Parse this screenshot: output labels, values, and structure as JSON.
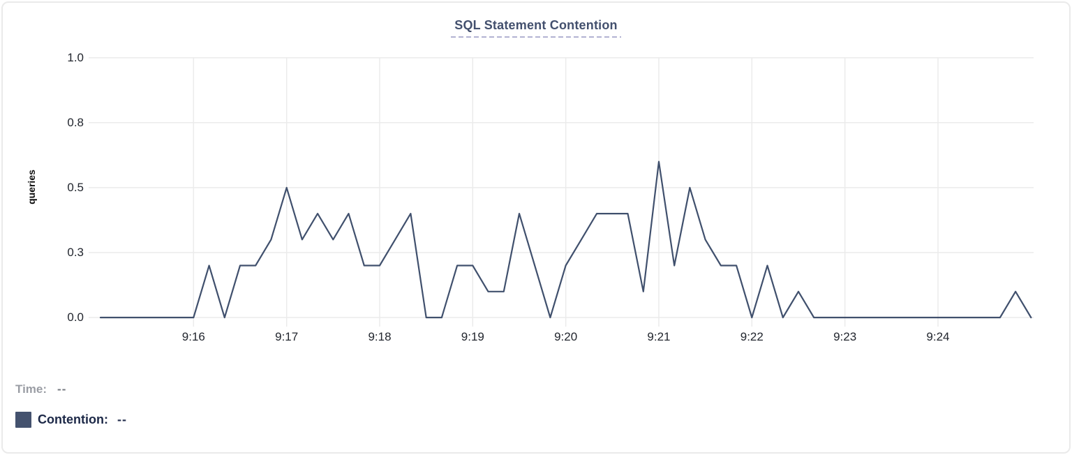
{
  "title": "SQL Statement Contention",
  "y_axis_label": "queries",
  "legend": {
    "time_label": "Time:",
    "time_value": "--",
    "contention_label": "Contention:",
    "contention_value": "--"
  },
  "colors": {
    "series_line": "#40506d",
    "legend_swatch": "#44526e",
    "title_text": "#43506e",
    "title_underline": "#b2b2d2",
    "gridline": "#ebebeb",
    "tick_text": "#22262e",
    "time_label_text": "#9a9da4",
    "legend_text": "#1c2847"
  },
  "chart_data": {
    "type": "line",
    "title": "SQL Statement Contention",
    "xlabel": "",
    "ylabel": "queries",
    "ylim": [
      0,
      1.0
    ],
    "x_range": [
      "9:15:00",
      "9:25:00"
    ],
    "sample_interval_seconds": 10,
    "grid": true,
    "legend_position": "bottom-left",
    "x_ticks": [
      "9:16",
      "9:17",
      "9:18",
      "9:19",
      "9:20",
      "9:21",
      "9:22",
      "9:23",
      "9:24"
    ],
    "y_ticks": [
      {
        "label": "0.0",
        "value": 0
      },
      {
        "label": "0.3",
        "value": 0.25
      },
      {
        "label": "0.5",
        "value": 0.5
      },
      {
        "label": "0.8",
        "value": 0.75
      },
      {
        "label": "1.0",
        "value": 1.0
      }
    ],
    "series": [
      {
        "name": "Contention",
        "unit": "queries",
        "x": [
          "9:15:00",
          "9:15:10",
          "9:15:20",
          "9:15:30",
          "9:15:40",
          "9:15:50",
          "9:16:00",
          "9:16:10",
          "9:16:20",
          "9:16:30",
          "9:16:40",
          "9:16:50",
          "9:17:00",
          "9:17:10",
          "9:17:20",
          "9:17:30",
          "9:17:40",
          "9:17:50",
          "9:18:00",
          "9:18:10",
          "9:18:20",
          "9:18:30",
          "9:18:40",
          "9:18:50",
          "9:19:00",
          "9:19:10",
          "9:19:20",
          "9:19:30",
          "9:19:40",
          "9:19:50",
          "9:20:00",
          "9:20:10",
          "9:20:20",
          "9:20:30",
          "9:20:40",
          "9:20:50",
          "9:21:00",
          "9:21:10",
          "9:21:20",
          "9:21:30",
          "9:21:40",
          "9:21:50",
          "9:22:00",
          "9:22:10",
          "9:22:20",
          "9:22:30",
          "9:22:40",
          "9:22:50",
          "9:23:00",
          "9:23:10",
          "9:23:20",
          "9:23:30",
          "9:23:40",
          "9:23:50",
          "9:24:00",
          "9:24:10",
          "9:24:20",
          "9:24:30",
          "9:24:40",
          "9:24:50",
          "9:25:00"
        ],
        "values": [
          0,
          0,
          0,
          0,
          0,
          0,
          0,
          0.2,
          0,
          0.2,
          0.2,
          0.3,
          0.5,
          0.3,
          0.4,
          0.3,
          0.4,
          0.2,
          0.2,
          0.3,
          0.4,
          0,
          0,
          0.2,
          0.2,
          0.1,
          0.1,
          0.4,
          0.2,
          0,
          0.2,
          0.3,
          0.4,
          0.4,
          0.4,
          0.1,
          0.6,
          0.2,
          0.5,
          0.3,
          0.2,
          0.2,
          0,
          0.2,
          0,
          0.1,
          0,
          0,
          0,
          0,
          0,
          0,
          0,
          0,
          0,
          0,
          0,
          0,
          0,
          0.1,
          0
        ]
      }
    ]
  }
}
